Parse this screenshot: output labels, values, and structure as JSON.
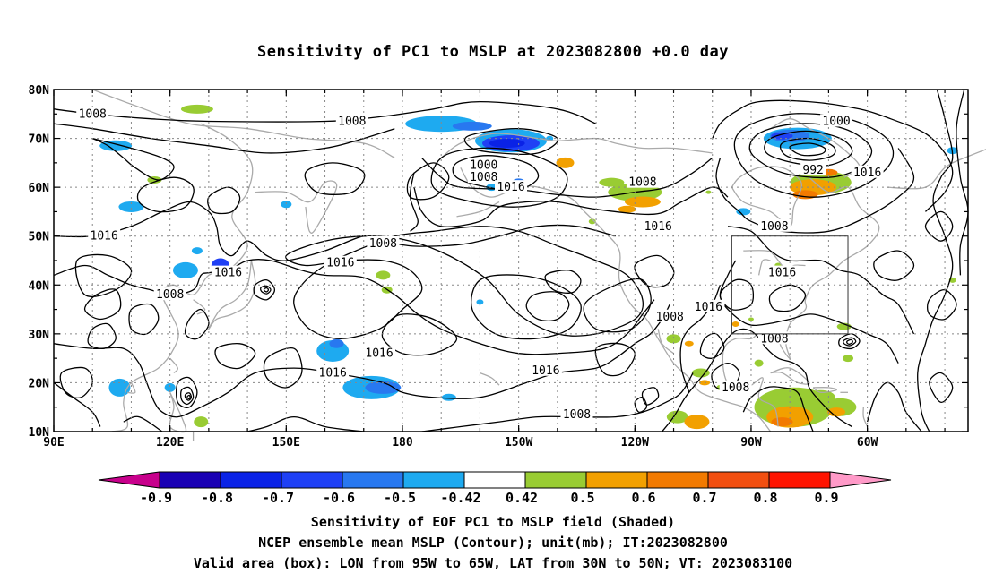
{
  "title": "Sensitivity of PC1 to MSLP at 2023082800 +0.0 day",
  "map": {
    "lat_labels": [
      "80N",
      "70N",
      "60N",
      "50N",
      "40N",
      "30N",
      "20N",
      "10N"
    ],
    "lon_labels": [
      "90E",
      "120E",
      "150E",
      "180",
      "150W",
      "120W",
      "90W",
      "60W"
    ],
    "contour_labels": [
      {
        "text": "1008",
        "lon": 100,
        "lat": 75
      },
      {
        "text": "1008",
        "lon": 167,
        "lat": 73.5
      },
      {
        "text": "1000",
        "lon": -159,
        "lat": 64.5
      },
      {
        "text": "1008",
        "lon": -159,
        "lat": 62
      },
      {
        "text": "1016",
        "lon": -152,
        "lat": 60
      },
      {
        "text": "1008",
        "lon": -118,
        "lat": 61
      },
      {
        "text": "1016",
        "lon": -114,
        "lat": 52
      },
      {
        "text": "1000",
        "lon": -68,
        "lat": 73.5
      },
      {
        "text": "992",
        "lon": -74,
        "lat": 63.5
      },
      {
        "text": "1016",
        "lon": -60,
        "lat": 63
      },
      {
        "text": "1008",
        "lon": -84,
        "lat": 52
      },
      {
        "text": "1016",
        "lon": -82,
        "lat": 42.5
      },
      {
        "text": "1008",
        "lon": -185,
        "lat": 48.5
      },
      {
        "text": "1016",
        "lon": 164,
        "lat": 44.5
      },
      {
        "text": "1016",
        "lon": 103,
        "lat": 50
      },
      {
        "text": "1016",
        "lon": 135,
        "lat": 42.5
      },
      {
        "text": "1008",
        "lon": 120,
        "lat": 38
      },
      {
        "text": "1016",
        "lon": -186,
        "lat": 26
      },
      {
        "text": "1016",
        "lon": 162,
        "lat": 22
      },
      {
        "text": "1016",
        "lon": -143,
        "lat": 22.5
      },
      {
        "text": "1008",
        "lon": -111,
        "lat": 33.5
      },
      {
        "text": "1016",
        "lon": -101,
        "lat": 35.5
      },
      {
        "text": "1008",
        "lon": -94,
        "lat": 19
      },
      {
        "text": "1008",
        "lon": -84,
        "lat": 29
      },
      {
        "text": "1008",
        "lon": -135,
        "lat": 13.5
      }
    ],
    "valid_box": {
      "lon_min": -95,
      "lon_max": -65,
      "lat_min": 30,
      "lat_max": 50
    }
  },
  "colorbar": {
    "labels": [
      "-0.9",
      "-0.8",
      "-0.7",
      "-0.6",
      "-0.5",
      "-0.42",
      "0.42",
      "0.5",
      "0.6",
      "0.7",
      "0.8",
      "0.9"
    ],
    "colors": [
      "#1a00b4",
      "#0a22e6",
      "#1f40f5",
      "#2878f0",
      "#1eaaf0",
      "#ffffff",
      "#99cc33",
      "#f2a000",
      "#f27a00",
      "#f24f10",
      "#ff1400"
    ],
    "low_end_color": "#c8008c",
    "high_end_color": "#ff9ac8"
  },
  "captions": {
    "line1": "Sensitivity of EOF PC1 to MSLP field (Shaded)",
    "line2": "NCEP ensemble mean MSLP (Contour); unit(mb); IT:2023082800",
    "line3": "Valid area (box): LON from 95W to 65W, LAT from 30N to 50N; VT: 2023083100"
  }
}
